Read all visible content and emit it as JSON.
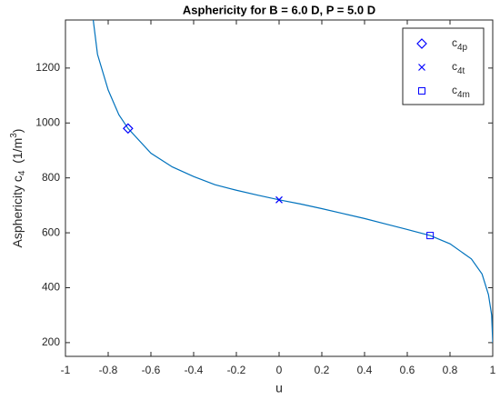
{
  "chart_data": {
    "type": "line",
    "title": "Asphericity for B = 6.0 D, P = 5.0 D",
    "x_label": "u",
    "y_label": {
      "text": "Asphericity c",
      "sub": "4",
      "mid": "  (1/m",
      "sup": "3",
      "end": ")"
    },
    "xlim": [
      -1,
      1
    ],
    "xticks": [
      -1,
      -0.8,
      -0.6,
      -0.4,
      -0.2,
      0,
      0.2,
      0.4,
      0.6,
      0.8,
      1
    ],
    "ylim": [
      150,
      1375
    ],
    "yticks": [
      200,
      400,
      600,
      800,
      1000,
      1200
    ],
    "legend": "top-right",
    "series": [
      {
        "color": "#0072bd",
        "x": [
          -0.87,
          -0.85,
          -0.8,
          -0.75,
          -0.707,
          -0.6,
          -0.5,
          -0.4,
          -0.3,
          -0.2,
          -0.1,
          0,
          0.1,
          0.2,
          0.3,
          0.4,
          0.5,
          0.6,
          0.707,
          0.8,
          0.9,
          0.95,
          0.98,
          0.995,
          1.0
        ],
        "values": [
          1375,
          1250,
          1120,
          1030,
          980,
          890,
          840,
          805,
          775,
          755,
          737,
          720,
          705,
          688,
          670,
          652,
          632,
          612,
          590,
          560,
          505,
          450,
          375,
          300,
          200
        ]
      },
      {
        "name": "c",
        "subscript": "4p",
        "marker": "diamond",
        "color": "#0000ff",
        "x": [
          -0.707
        ],
        "values": [
          980
        ]
      },
      {
        "name": "c",
        "subscript": "4t",
        "marker": "cross",
        "color": "#0000ff",
        "x": [
          0
        ],
        "values": [
          720
        ]
      },
      {
        "name": "c",
        "subscript": "4m",
        "marker": "square",
        "color": "#0000ff",
        "x": [
          0.707
        ],
        "values": [
          590
        ]
      }
    ]
  }
}
